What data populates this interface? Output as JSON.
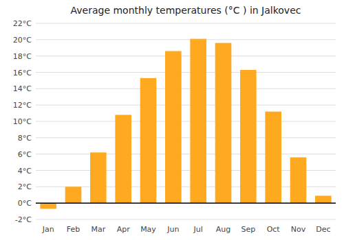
{
  "chart_data": {
    "type": "bar",
    "title": "Average monthly temperatures (°C ) in Jalkovec",
    "categories": [
      "Jan",
      "Feb",
      "Mar",
      "Apr",
      "May",
      "Jun",
      "Jul",
      "Aug",
      "Sep",
      "Oct",
      "Nov",
      "Dec"
    ],
    "values": [
      -0.7,
      2.0,
      6.2,
      10.8,
      15.3,
      18.6,
      20.1,
      19.6,
      16.3,
      11.2,
      5.6,
      0.9
    ],
    "color": "#FFA920",
    "ylim": [
      -2,
      22
    ],
    "yticks": [
      {
        "value": -2,
        "label": "-2°C"
      },
      {
        "value": 0,
        "label": "0°C"
      },
      {
        "value": 2,
        "label": "2°C"
      },
      {
        "value": 4,
        "label": "4°C"
      },
      {
        "value": 6,
        "label": "6°C"
      },
      {
        "value": 8,
        "label": "8°C"
      },
      {
        "value": 10,
        "label": "10°C"
      },
      {
        "value": 12,
        "label": "12°C"
      },
      {
        "value": 14,
        "label": "14°C"
      },
      {
        "value": 16,
        "label": "16°C"
      },
      {
        "value": 18,
        "label": "18°C"
      },
      {
        "value": 20,
        "label": "20°C"
      },
      {
        "value": 22,
        "label": "22°C"
      }
    ],
    "grid": true
  }
}
